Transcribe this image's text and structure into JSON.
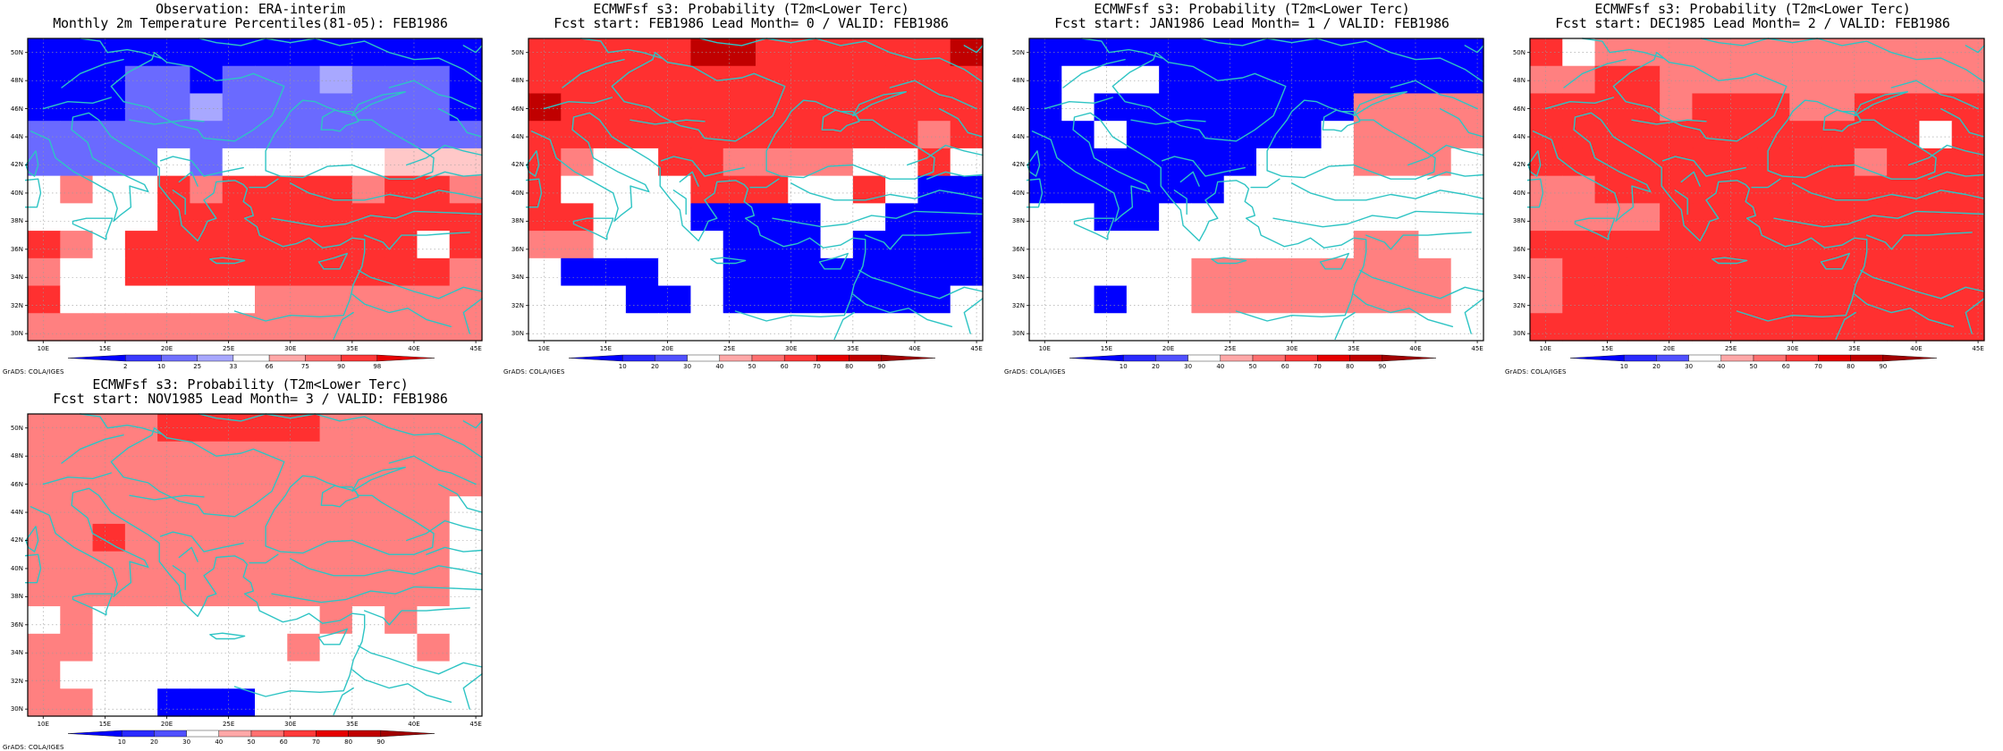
{
  "panels": [
    {
      "id": "obs",
      "title_line1": "Observation: ERA-interim",
      "title_line2": "Monthly 2m Temperature Percentiles(81-05): FEB1986",
      "credit": "GrADS: COLA/IGES",
      "colorbar": {
        "labels": [
          "2",
          "10",
          "25",
          "33",
          "66",
          "75",
          "90",
          "98"
        ],
        "colors": [
          "#0000ff",
          "#3a3aff",
          "#7070ff",
          "#a8a8ff",
          "#ffffff",
          "#ffa8a8",
          "#ff7070",
          "#ff3a3a",
          "#e60000"
        ]
      },
      "grid": [
        "BBBBBBBBBBBBBB",
        "BBBbbBbbbLbbbB",
        "BBBbbLbbbbbbbB",
        "bbbbbbbbbbbbbb",
        "bbbbWbWWWWWlll",
        "WmWWrmrrrrmrrm",
        "WWWWrrrrrrrrrr",
        "rmWrrrrrrrrrWr",
        "mWWrrrrrrrrrrm",
        "rWWWWWWmmmmmmm",
        "mmmmmmmmmmmmmm"
      ]
    },
    {
      "id": "lead0",
      "title_line1": "ECMWFsf s3: Probability (T2m<Lower Terc)",
      "title_line2": "Fcst start: FEB1986  Lead Month= 0 / VALID: FEB1986",
      "credit": "GrADS: COLA/IGES",
      "colorbar": {
        "labels": [
          "10",
          "20",
          "30",
          "40",
          "50",
          "60",
          "70",
          "80",
          "90"
        ],
        "colors": [
          "#0000ff",
          "#2a2aff",
          "#5050ff",
          "#ffffff",
          "#ffa8a8",
          "#ff7070",
          "#ff3a3a",
          "#e60000",
          "#c00000",
          "#a00000"
        ]
      },
      "grid": [
        "rrrrrddrrrrrrd",
        "rrrrrrrrrrrrrr",
        "drrrrrrrrrrrrr",
        "rrrrrrrrrrrrmr",
        "rmWWrrmmmmWWrW",
        "rWWWWrrrWWrWBB",
        "rrWWWBBBBWWBBB",
        "mmWWWWBBBWBBBB",
        "WBBBWWBBBBBBBB",
        "WWWBBWBBBBBBBW",
        "WWWWWWWWWWWWWW"
      ]
    },
    {
      "id": "lead1",
      "title_line1": "ECMWFsf s3: Probability (T2m<Lower Terc)",
      "title_line2": "Fcst start: JAN1986  Lead Month= 1 / VALID: FEB1986",
      "credit": "GrADS: COLA/IGES",
      "colorbar": {
        "labels": [
          "10",
          "20",
          "30",
          "40",
          "50",
          "60",
          "70",
          "80",
          "90"
        ],
        "colors": [
          "#0000ff",
          "#2a2aff",
          "#5050ff",
          "#ffffff",
          "#ffa8a8",
          "#ff7070",
          "#ff3a3a",
          "#e60000",
          "#c00000",
          "#a00000"
        ]
      },
      "grid": [
        "BBBBBBBBBBBBBB",
        "BWWWBBBBBBBBBB",
        "BWBBBBBBBBmmmm",
        "BBWBBBBBBWmmmm",
        "BBBBBBBWWWmmmW",
        "BBBBBBWWWWWWWW",
        "WWBBWWWWWWWWWW",
        "WWWWWWWWWWmmWW",
        "WWWWWmmmmmmmmW",
        "WWBWWmmmmmmmmW",
        "WWWWWWWWWWWWWW"
      ]
    },
    {
      "id": "lead2",
      "title_line1": "ECMWFsf s3: Probability (T2m<Lower Terc)",
      "title_line2": "Fcst start: DEC1985  Lead Month= 2 / VALID: FEB1986",
      "credit": "GrADS: COLA/IGES",
      "colorbar": {
        "labels": [
          "10",
          "20",
          "30",
          "40",
          "50",
          "60",
          "70",
          "80",
          "90"
        ],
        "colors": [
          "#0000ff",
          "#2a2aff",
          "#5050ff",
          "#ffffff",
          "#ffa8a8",
          "#ff7070",
          "#ff3a3a",
          "#e60000",
          "#c00000",
          "#a00000"
        ]
      },
      "grid": [
        "rWmmmmmmmmmmmm",
        "mmrrmmmmmmmmmm",
        "rrrrmrrrmmrrrr",
        "rrrrrrrrrrrrWr",
        "rrrrrrrrrrmrrr",
        "mmrrrrrrrrrrrr",
        "mmmmrrrrrrrrrr",
        "rrrrrrrrrrrrrr",
        "mrrrrrrrrrrrrr",
        "mrrrrrrrrrrrrr",
        "rrrrrrrrrrrrrr"
      ]
    },
    {
      "id": "lead3",
      "title_line1": "ECMWFsf s3: Probability (T2m<Lower Terc)",
      "title_line2": "Fcst start: NOV1985  Lead Month= 3 / VALID: FEB1986",
      "credit": "GrADS: COLA/IGES",
      "colorbar": {
        "labels": [
          "10",
          "20",
          "30",
          "40",
          "50",
          "60",
          "70",
          "80",
          "90"
        ],
        "colors": [
          "#0000ff",
          "#2a2aff",
          "#5050ff",
          "#ffffff",
          "#ffa8a8",
          "#ff7070",
          "#ff3a3a",
          "#e60000",
          "#c00000",
          "#a00000"
        ]
      },
      "grid": [
        "mmmmrrrrrmmmmm",
        "mmmmmmmmmmmmmm",
        "mmmmmmmmmmmmmm",
        "mmmmmmmmmmmmmW",
        "mmrmmmmmmmmmmW",
        "mmmmmmmmmmmmmW",
        "mmmmmmmmmmmmmW",
        "WmWWWWWWWmWmWW",
        "mmWWWWWWmWWWmW",
        "mWWWWWWWWWWWWW",
        "mmWWBBBWWWWWWW"
      ]
    }
  ],
  "map_axes": {
    "lon_labels": [
      "10E",
      "15E",
      "20E",
      "25E",
      "30E",
      "35E",
      "40E",
      "45E"
    ],
    "lat_labels": [
      "30N",
      "32N",
      "34N",
      "36N",
      "38N",
      "40N",
      "42N",
      "44N",
      "46N",
      "48N",
      "50N"
    ]
  },
  "palette": {
    "B": "#0000ff",
    "b": "#6a6aff",
    "L": "#a8a8ff",
    "W": "#ffffff",
    "l": "#ffc8c8",
    "m": "#ff8080",
    "r": "#ff3030",
    "d": "#c00000"
  },
  "coast_color": "#2ec4c4"
}
